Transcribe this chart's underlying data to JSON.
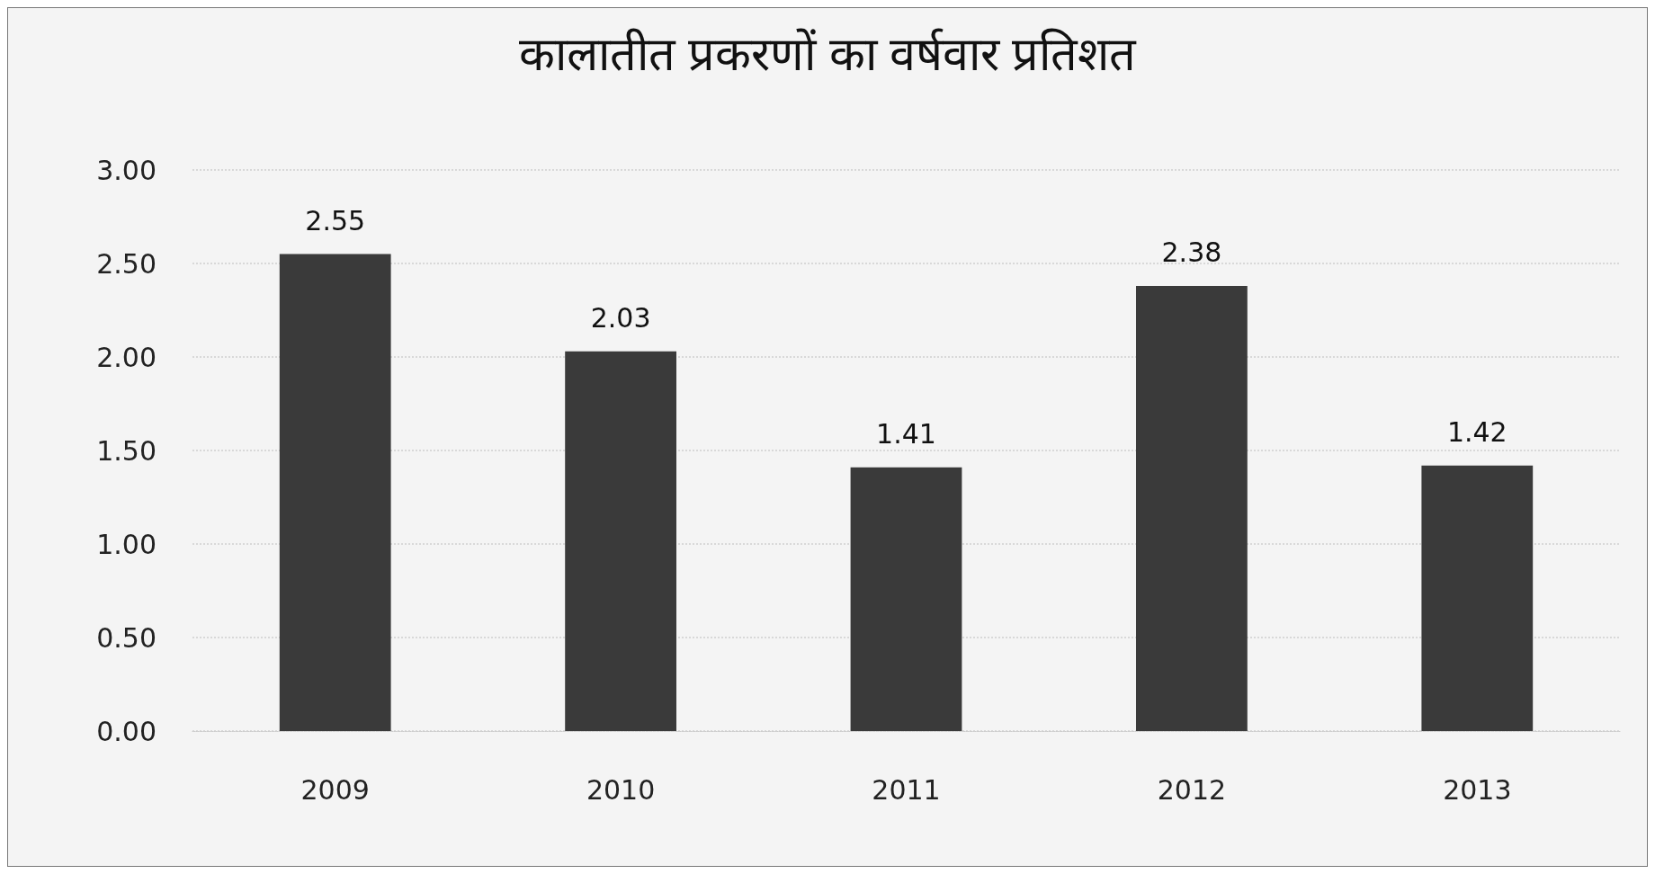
{
  "chart_data": {
    "type": "bar",
    "title": "कालातीत प्रकरणों का वर्षवार प्रतिशत",
    "categories": [
      "2009",
      "2010",
      "2011",
      "2012",
      "2013"
    ],
    "values": [
      2.55,
      2.03,
      1.41,
      2.38,
      1.42
    ],
    "color": "#3a3a3a",
    "ylim": [
      0,
      3
    ],
    "yticks": [
      {
        "value": 0,
        "label": "0.00"
      },
      {
        "value": 0.5,
        "label": "0.50"
      },
      {
        "value": 1,
        "label": "1.00"
      },
      {
        "value": 1.5,
        "label": "1.50"
      },
      {
        "value": 2,
        "label": "2.00"
      },
      {
        "value": 2.5,
        "label": "2.50"
      },
      {
        "value": 3,
        "label": "3.00"
      }
    ],
    "grid": "y",
    "data_labels": true
  }
}
